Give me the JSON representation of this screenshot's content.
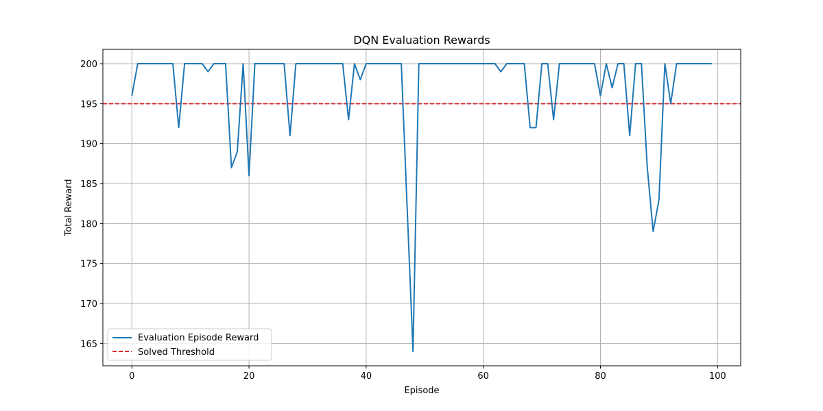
{
  "chart_data": {
    "type": "line",
    "title": "DQN Evaluation Rewards",
    "xlabel": "Episode",
    "ylabel": "Total Reward",
    "xlim": [
      -4.95,
      103.95
    ],
    "ylim": [
      162.2,
      201.8
    ],
    "x_ticks": [
      0,
      20,
      40,
      60,
      80,
      100
    ],
    "y_ticks": [
      165,
      170,
      175,
      180,
      185,
      190,
      195,
      200
    ],
    "grid": true,
    "legend_position": "lower-left",
    "series": [
      {
        "name": "Evaluation Episode Reward",
        "color": "#1f77b4",
        "style": "solid",
        "x": [
          0,
          1,
          2,
          3,
          4,
          5,
          6,
          7,
          8,
          9,
          10,
          11,
          12,
          13,
          14,
          15,
          16,
          17,
          18,
          19,
          20,
          21,
          22,
          23,
          24,
          25,
          26,
          27,
          28,
          29,
          30,
          31,
          32,
          33,
          34,
          35,
          36,
          37,
          38,
          39,
          40,
          41,
          42,
          43,
          44,
          45,
          46,
          47,
          48,
          49,
          50,
          51,
          52,
          53,
          54,
          55,
          56,
          57,
          58,
          59,
          60,
          61,
          62,
          63,
          64,
          65,
          66,
          67,
          68,
          69,
          70,
          71,
          72,
          73,
          74,
          75,
          76,
          77,
          78,
          79,
          80,
          81,
          82,
          83,
          84,
          85,
          86,
          87,
          88,
          89,
          90,
          91,
          92,
          93,
          94,
          95,
          96,
          97,
          98,
          99
        ],
        "values": [
          196,
          200,
          200,
          200,
          200,
          200,
          200,
          200,
          192,
          200,
          200,
          200,
          200,
          199,
          200,
          200,
          200,
          187,
          189,
          200,
          186,
          200,
          200,
          200,
          200,
          200,
          200,
          191,
          200,
          200,
          200,
          200,
          200,
          200,
          200,
          200,
          200,
          193,
          200,
          198,
          200,
          200,
          200,
          200,
          200,
          200,
          200,
          182,
          164,
          200,
          200,
          200,
          200,
          200,
          200,
          200,
          200,
          200,
          200,
          200,
          200,
          200,
          200,
          199,
          200,
          200,
          200,
          200,
          192,
          192,
          200,
          200,
          193,
          200,
          200,
          200,
          200,
          200,
          200,
          200,
          196,
          200,
          197,
          200,
          200,
          191,
          200,
          200,
          187,
          179,
          183,
          200,
          195,
          200,
          200,
          200,
          200,
          200,
          200,
          200
        ]
      },
      {
        "name": "Solved Threshold",
        "color": "#d62728",
        "style": "dashed",
        "y": 195
      }
    ]
  }
}
